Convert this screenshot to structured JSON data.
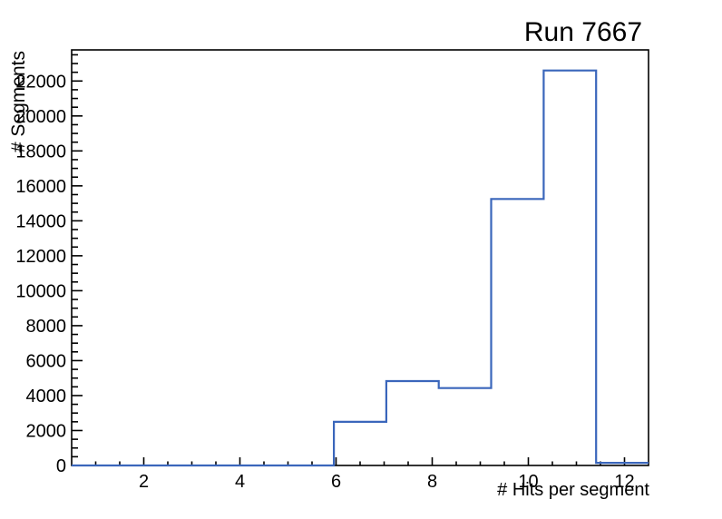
{
  "window": {
    "background": "#ffffff"
  },
  "chart_data": {
    "type": "histogram",
    "title": "Run 7667",
    "xlabel": "# Hits per segment",
    "ylabel": "# Segments",
    "xlim": [
      0.5,
      12.5
    ],
    "ylim": [
      0,
      23780
    ],
    "bin_edges": [
      0.5,
      1.5909,
      2.6818,
      3.7727,
      4.8636,
      5.9545,
      7.0455,
      8.1364,
      9.2273,
      10.3182,
      11.4091,
      12.5
    ],
    "counts": [
      0,
      0,
      0,
      0,
      0,
      2500,
      4830,
      4430,
      15250,
      22600,
      150
    ],
    "x_major_ticks": [
      2,
      4,
      6,
      8,
      10,
      12
    ],
    "x_minor_step": 0.5,
    "y_major_ticks": [
      0,
      2000,
      4000,
      6000,
      8000,
      10000,
      12000,
      14000,
      16000,
      18000,
      20000,
      22000
    ],
    "y_major_step": 2000,
    "y_minor_step": 500,
    "grid": false,
    "legend": null,
    "line_color": "#3a66bb",
    "frame_color": "#000000",
    "text_color": "#000000"
  }
}
